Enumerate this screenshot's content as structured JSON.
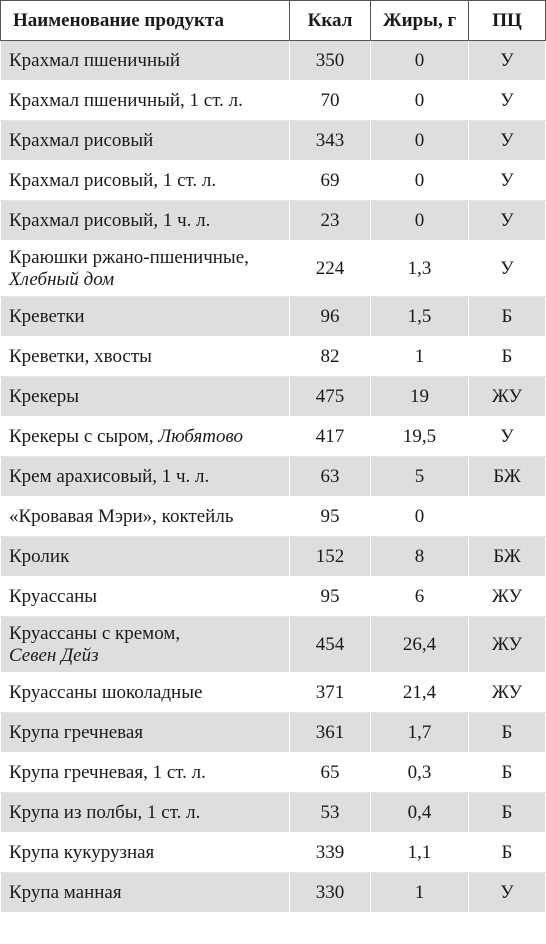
{
  "headers": {
    "name": "Наименование продукта",
    "kcal": "Ккал",
    "fat": "Жиры, г",
    "pc": "ПЦ"
  },
  "rows": [
    {
      "name": "Крахмал пшеничный",
      "brand": "",
      "kcal": "350",
      "fat": "0",
      "pc": "У"
    },
    {
      "name": "Крахмал пшеничный, 1 ст. л.",
      "brand": "",
      "kcal": "70",
      "fat": "0",
      "pc": "У"
    },
    {
      "name": "Крахмал рисовый",
      "brand": "",
      "kcal": "343",
      "fat": "0",
      "pc": "У"
    },
    {
      "name": "Крахмал рисовый, 1 ст. л.",
      "brand": "",
      "kcal": "69",
      "fat": "0",
      "pc": "У"
    },
    {
      "name": "Крахмал рисовый, 1 ч. л.",
      "brand": "",
      "kcal": "23",
      "fat": "0",
      "pc": "У"
    },
    {
      "name": "Краюшки ржано-пшеничные,",
      "brand": "Хлебный дом",
      "kcal": "224",
      "fat": "1,3",
      "pc": "У"
    },
    {
      "name": "Креветки",
      "brand": "",
      "kcal": "96",
      "fat": "1,5",
      "pc": "Б"
    },
    {
      "name": "Креветки, хвосты",
      "brand": "",
      "kcal": "82",
      "fat": "1",
      "pc": "Б"
    },
    {
      "name": "Крекеры",
      "brand": "",
      "kcal": "475",
      "fat": "19",
      "pc": "ЖУ"
    },
    {
      "name": "Крекеры с сыром, ",
      "brand_inline": "Любятово",
      "kcal": "417",
      "fat": "19,5",
      "pc": "У"
    },
    {
      "name": "Крем арахисовый, 1 ч. л.",
      "brand": "",
      "kcal": "63",
      "fat": "5",
      "pc": "БЖ"
    },
    {
      "name": "«Кровавая Мэри», коктейль",
      "brand": "",
      "kcal": "95",
      "fat": "0",
      "pc": ""
    },
    {
      "name": "Кролик",
      "brand": "",
      "kcal": "152",
      "fat": "8",
      "pc": "БЖ"
    },
    {
      "name": "Круассаны",
      "brand": "",
      "kcal": "95",
      "fat": "6",
      "pc": "ЖУ"
    },
    {
      "name": "Круассаны с кремом,",
      "brand": "Севен Дейз",
      "kcal": "454",
      "fat": "26,4",
      "pc": "ЖУ"
    },
    {
      "name": "Круассаны шоколадные",
      "brand": "",
      "kcal": "371",
      "fat": "21,4",
      "pc": "ЖУ"
    },
    {
      "name": "Крупа гречневая",
      "brand": "",
      "kcal": "361",
      "fat": "1,7",
      "pc": "Б"
    },
    {
      "name": "Крупа гречневая, 1 ст. л.",
      "brand": "",
      "kcal": "65",
      "fat": "0,3",
      "pc": "Б"
    },
    {
      "name": "Крупа из полбы, 1 ст. л.",
      "brand": "",
      "kcal": "53",
      "fat": "0,4",
      "pc": "Б"
    },
    {
      "name": "Крупа кукурузная",
      "brand": "",
      "kcal": "339",
      "fat": "1,1",
      "pc": "Б"
    },
    {
      "name": "Крупа манная",
      "brand": "",
      "kcal": "330",
      "fat": "1",
      "pc": "У"
    }
  ]
}
